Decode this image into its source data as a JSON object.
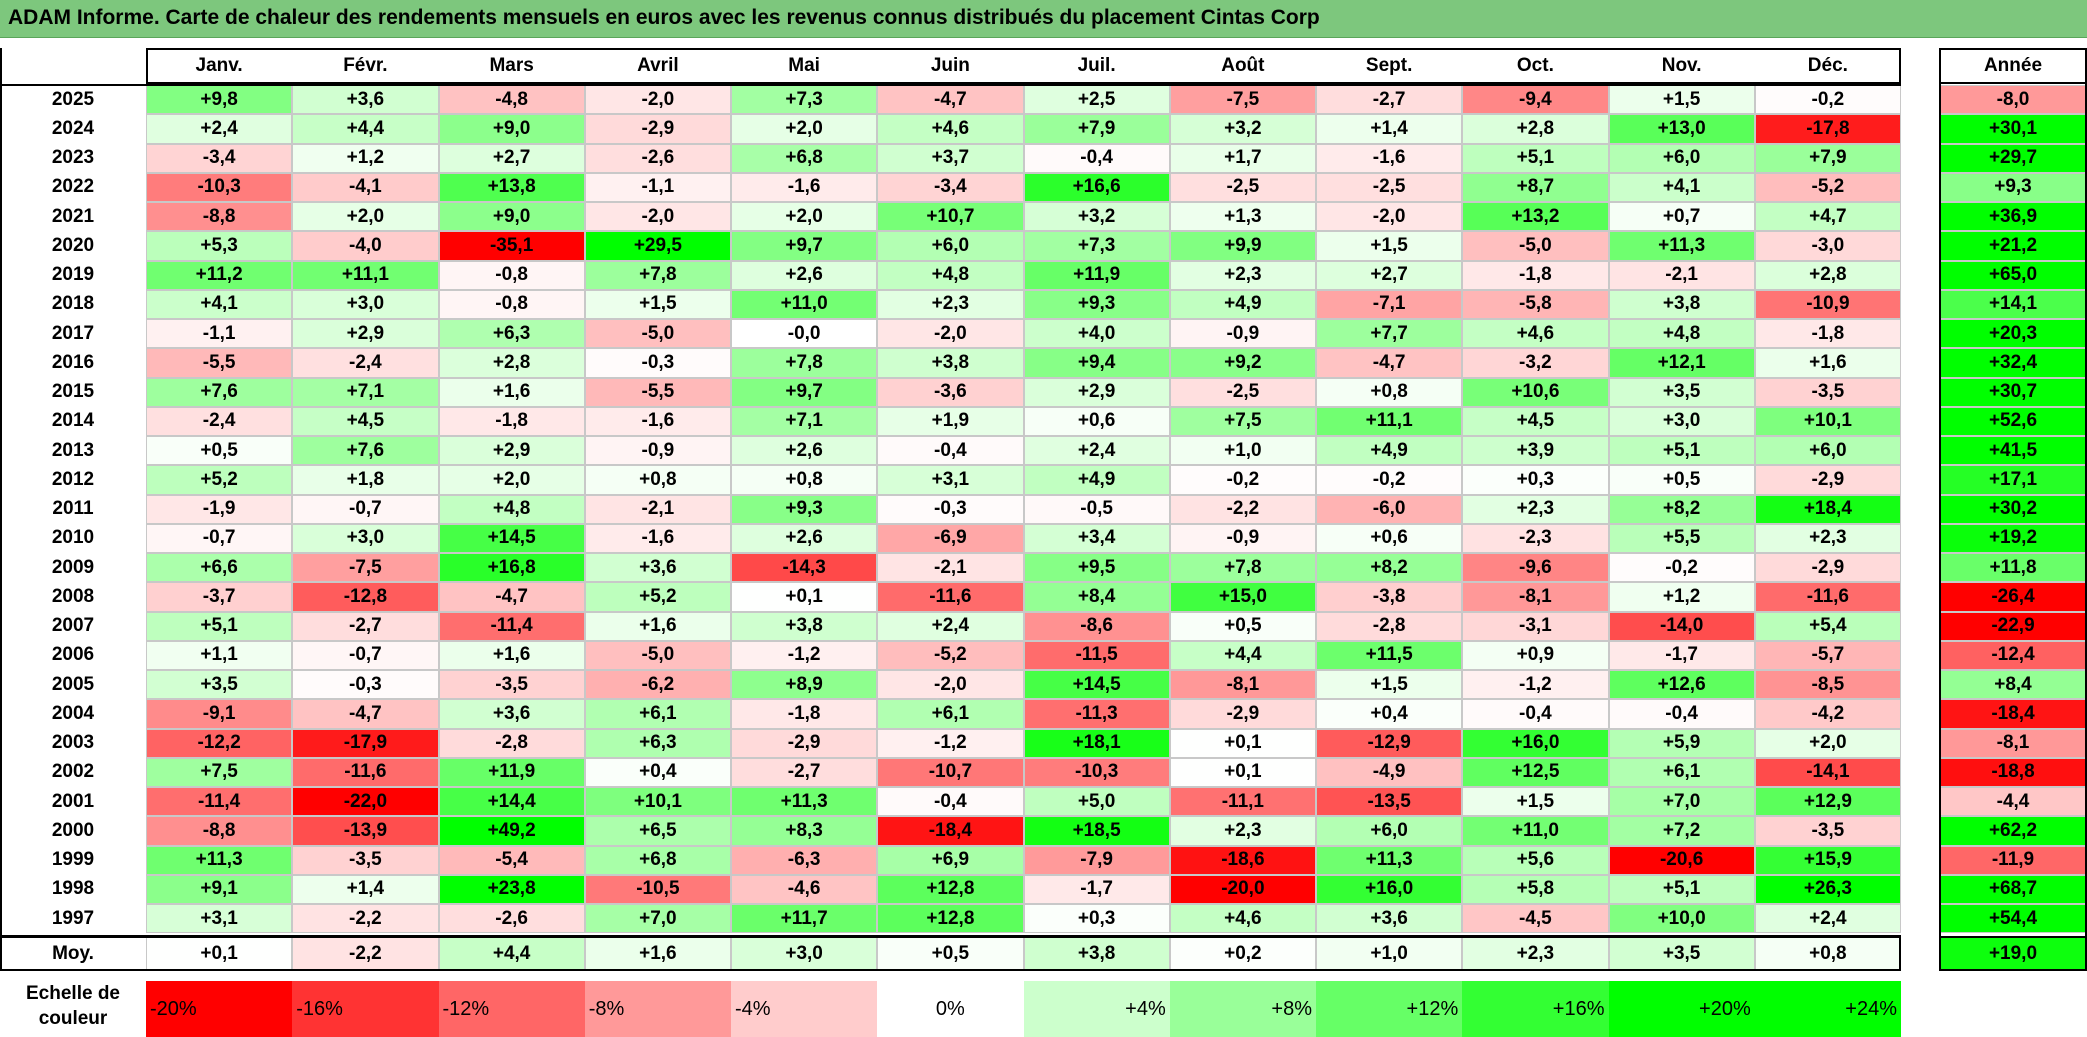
{
  "title": "ADAM Informe. Carte de chaleur des rendements mensuels en euros avec les revenus connus distribués du placement Cintas Corp",
  "chart_data": {
    "type": "heatmap",
    "months": [
      "Janv.",
      "Févr.",
      "Mars",
      "Avril",
      "Mai",
      "Juin",
      "Juil.",
      "Août",
      "Sept.",
      "Oct.",
      "Nov.",
      "Déc."
    ],
    "year_header": "Année",
    "rows": [
      {
        "year": "2025",
        "values": [
          "+9,8",
          "+3,6",
          "-4,8",
          "-2,0",
          "+7,3",
          "-4,7",
          "+2,5",
          "-7,5",
          "-2,7",
          "-9,4",
          "+1,5",
          "-0,2"
        ],
        "annual": "-8,0"
      },
      {
        "year": "2024",
        "values": [
          "+2,4",
          "+4,4",
          "+9,0",
          "-2,9",
          "+2,0",
          "+4,6",
          "+7,9",
          "+3,2",
          "+1,4",
          "+2,8",
          "+13,0",
          "-17,8"
        ],
        "annual": "+30,1"
      },
      {
        "year": "2023",
        "values": [
          "-3,4",
          "+1,2",
          "+2,7",
          "-2,6",
          "+6,8",
          "+3,7",
          "-0,4",
          "+1,7",
          "-1,6",
          "+5,1",
          "+6,0",
          "+7,9"
        ],
        "annual": "+29,7"
      },
      {
        "year": "2022",
        "values": [
          "-10,3",
          "-4,1",
          "+13,8",
          "-1,1",
          "-1,6",
          "-3,4",
          "+16,6",
          "-2,5",
          "-2,5",
          "+8,7",
          "+4,1",
          "-5,2"
        ],
        "annual": "+9,3"
      },
      {
        "year": "2021",
        "values": [
          "-8,8",
          "+2,0",
          "+9,0",
          "-2,0",
          "+2,0",
          "+10,7",
          "+3,2",
          "+1,3",
          "-2,0",
          "+13,2",
          "+0,7",
          "+4,7"
        ],
        "annual": "+36,9"
      },
      {
        "year": "2020",
        "values": [
          "+5,3",
          "-4,0",
          "-35,1",
          "+29,5",
          "+9,7",
          "+6,0",
          "+7,3",
          "+9,9",
          "+1,5",
          "-5,0",
          "+11,3",
          "-3,0"
        ],
        "annual": "+21,2"
      },
      {
        "year": "2019",
        "values": [
          "+11,2",
          "+11,1",
          "-0,8",
          "+7,8",
          "+2,6",
          "+4,8",
          "+11,9",
          "+2,3",
          "+2,7",
          "-1,8",
          "-2,1",
          "+2,8"
        ],
        "annual": "+65,0"
      },
      {
        "year": "2018",
        "values": [
          "+4,1",
          "+3,0",
          "-0,8",
          "+1,5",
          "+11,0",
          "+2,3",
          "+9,3",
          "+4,9",
          "-7,1",
          "-5,8",
          "+3,8",
          "-10,9"
        ],
        "annual": "+14,1"
      },
      {
        "year": "2017",
        "values": [
          "-1,1",
          "+2,9",
          "+6,3",
          "-5,0",
          "-0,0",
          "-2,0",
          "+4,0",
          "-0,9",
          "+7,7",
          "+4,6",
          "+4,8",
          "-1,8"
        ],
        "annual": "+20,3"
      },
      {
        "year": "2016",
        "values": [
          "-5,5",
          "-2,4",
          "+2,8",
          "-0,3",
          "+7,8",
          "+3,8",
          "+9,4",
          "+9,2",
          "-4,7",
          "-3,2",
          "+12,1",
          "+1,6"
        ],
        "annual": "+32,4"
      },
      {
        "year": "2015",
        "values": [
          "+7,6",
          "+7,1",
          "+1,6",
          "-5,5",
          "+9,7",
          "-3,6",
          "+2,9",
          "-2,5",
          "+0,8",
          "+10,6",
          "+3,5",
          "-3,5"
        ],
        "annual": "+30,7"
      },
      {
        "year": "2014",
        "values": [
          "-2,4",
          "+4,5",
          "-1,8",
          "-1,6",
          "+7,1",
          "+1,9",
          "+0,6",
          "+7,5",
          "+11,1",
          "+4,5",
          "+3,0",
          "+10,1"
        ],
        "annual": "+52,6"
      },
      {
        "year": "2013",
        "values": [
          "+0,5",
          "+7,6",
          "+2,9",
          "-0,9",
          "+2,6",
          "-0,4",
          "+2,4",
          "+1,0",
          "+4,9",
          "+3,9",
          "+5,1",
          "+6,0"
        ],
        "annual": "+41,5"
      },
      {
        "year": "2012",
        "values": [
          "+5,2",
          "+1,8",
          "+2,0",
          "+0,8",
          "+0,8",
          "+3,1",
          "+4,9",
          "-0,2",
          "-0,2",
          "+0,3",
          "+0,5",
          "-2,9"
        ],
        "annual": "+17,1"
      },
      {
        "year": "2011",
        "values": [
          "-1,9",
          "-0,7",
          "+4,8",
          "-2,1",
          "+9,3",
          "-0,3",
          "-0,5",
          "-2,2",
          "-6,0",
          "+2,3",
          "+8,2",
          "+18,4"
        ],
        "annual": "+30,2"
      },
      {
        "year": "2010",
        "values": [
          "-0,7",
          "+3,0",
          "+14,5",
          "-1,6",
          "+2,6",
          "-6,9",
          "+3,4",
          "-0,9",
          "+0,6",
          "-2,3",
          "+5,5",
          "+2,3"
        ],
        "annual": "+19,2"
      },
      {
        "year": "2009",
        "values": [
          "+6,6",
          "-7,5",
          "+16,8",
          "+3,6",
          "-14,3",
          "-2,1",
          "+9,5",
          "+7,8",
          "+8,2",
          "-9,6",
          "-0,2",
          "-2,9"
        ],
        "annual": "+11,8"
      },
      {
        "year": "2008",
        "values": [
          "-3,7",
          "-12,8",
          "-4,7",
          "+5,2",
          "+0,1",
          "-11,6",
          "+8,4",
          "+15,0",
          "-3,8",
          "-8,1",
          "+1,2",
          "-11,6"
        ],
        "annual": "-26,4"
      },
      {
        "year": "2007",
        "values": [
          "+5,1",
          "-2,7",
          "-11,4",
          "+1,6",
          "+3,8",
          "+2,4",
          "-8,6",
          "+0,5",
          "-2,8",
          "-3,1",
          "-14,0",
          "+5,4"
        ],
        "annual": "-22,9"
      },
      {
        "year": "2006",
        "values": [
          "+1,1",
          "-0,7",
          "+1,6",
          "-5,0",
          "-1,2",
          "-5,2",
          "-11,5",
          "+4,4",
          "+11,5",
          "+0,9",
          "-1,7",
          "-5,7"
        ],
        "annual": "-12,4"
      },
      {
        "year": "2005",
        "values": [
          "+3,5",
          "-0,3",
          "-3,5",
          "-6,2",
          "+8,9",
          "-2,0",
          "+14,5",
          "-8,1",
          "+1,5",
          "-1,2",
          "+12,6",
          "-8,5"
        ],
        "annual": "+8,4"
      },
      {
        "year": "2004",
        "values": [
          "-9,1",
          "-4,7",
          "+3,6",
          "+6,1",
          "-1,8",
          "+6,1",
          "-11,3",
          "-2,9",
          "+0,4",
          "-0,4",
          "-0,4",
          "-4,2"
        ],
        "annual": "-18,4"
      },
      {
        "year": "2003",
        "values": [
          "-12,2",
          "-17,9",
          "-2,8",
          "+6,3",
          "-2,9",
          "-1,2",
          "+18,1",
          "+0,1",
          "-12,9",
          "+16,0",
          "+5,9",
          "+2,0"
        ],
        "annual": "-8,1"
      },
      {
        "year": "2002",
        "values": [
          "+7,5",
          "-11,6",
          "+11,9",
          "+0,4",
          "-2,7",
          "-10,7",
          "-10,3",
          "+0,1",
          "-4,9",
          "+12,5",
          "+6,1",
          "-14,1"
        ],
        "annual": "-18,8"
      },
      {
        "year": "2001",
        "values": [
          "-11,4",
          "-22,0",
          "+14,4",
          "+10,1",
          "+11,3",
          "-0,4",
          "+5,0",
          "-11,1",
          "-13,5",
          "+1,5",
          "+7,0",
          "+12,9"
        ],
        "annual": "-4,4"
      },
      {
        "year": "2000",
        "values": [
          "-8,8",
          "-13,9",
          "+49,2",
          "+6,5",
          "+8,3",
          "-18,4",
          "+18,5",
          "+2,3",
          "+6,0",
          "+11,0",
          "+7,2",
          "-3,5"
        ],
        "annual": "+62,2"
      },
      {
        "year": "1999",
        "values": [
          "+11,3",
          "-3,5",
          "-5,4",
          "+6,8",
          "-6,3",
          "+6,9",
          "-7,9",
          "-18,6",
          "+11,3",
          "+5,6",
          "-20,6",
          "+15,9"
        ],
        "annual": "-11,9"
      },
      {
        "year": "1998",
        "values": [
          "+9,1",
          "+1,4",
          "+23,8",
          "-10,5",
          "-4,6",
          "+12,8",
          "-1,7",
          "-20,0",
          "+16,0",
          "+5,8",
          "+5,1",
          "+26,3"
        ],
        "annual": "+68,7"
      },
      {
        "year": "1997",
        "values": [
          "+3,1",
          "-2,2",
          "-2,6",
          "+7,0",
          "+11,7",
          "+12,8",
          "+0,3",
          "+4,6",
          "+3,6",
          "-4,5",
          "+10,0",
          "+2,4"
        ],
        "annual": "+54,4"
      }
    ],
    "average": {
      "label": "Moy.",
      "values": [
        "+0,1",
        "-2,2",
        "+4,4",
        "+1,6",
        "+3,0",
        "+0,5",
        "+3,8",
        "+0,2",
        "+1,0",
        "+2,3",
        "+3,5",
        "+0,8"
      ],
      "annual": "+19,0"
    },
    "legend": {
      "label": "Echelle de couleur",
      "steps": [
        "-20%",
        "-16%",
        "-12%",
        "-8%",
        "-4%",
        "0%",
        "+4%",
        "+8%",
        "+12%",
        "+16%",
        "+20%",
        "+24%"
      ]
    },
    "colors": {
      "negative": "#ff0000",
      "positive": "#00ff00",
      "neutral": "#ffffff",
      "title_bar": "#7dc77d"
    }
  }
}
